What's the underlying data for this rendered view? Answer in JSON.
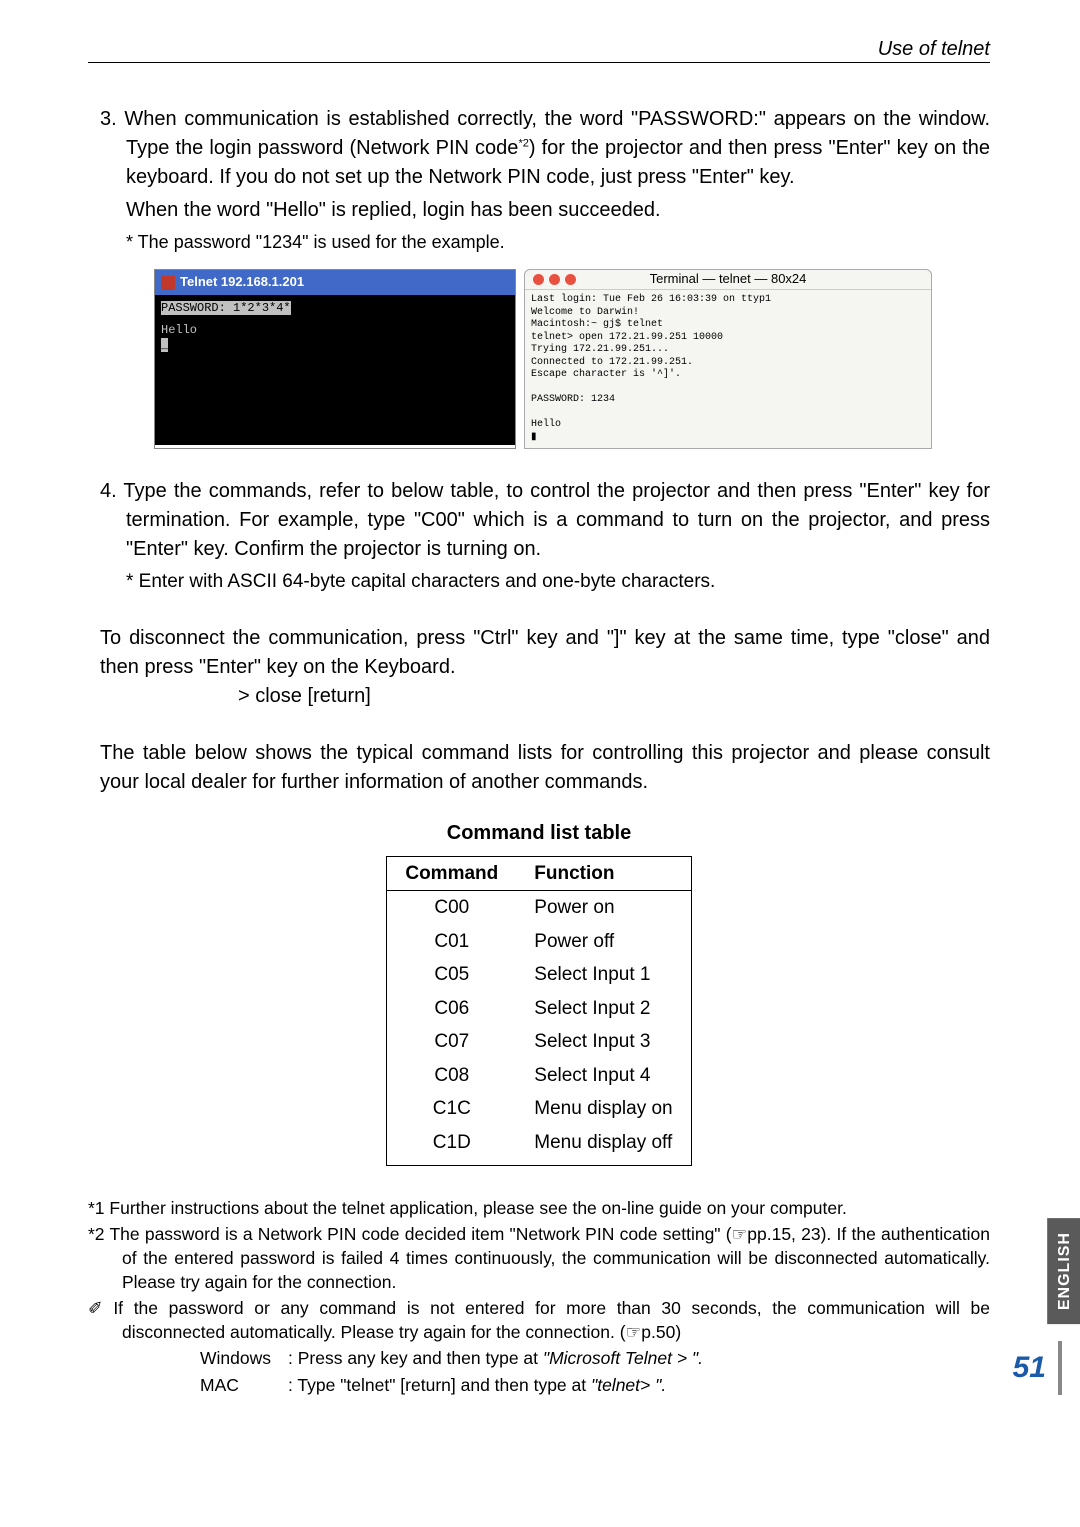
{
  "header": {
    "section_label": "Use of telnet"
  },
  "step3": {
    "num": "3.",
    "text_a": "When communication is established correctly, the word \"PASSWORD:\" appears on the window. Type the login password (Network PIN code",
    "sup": "*2",
    "text_b": ") for the projector and then press \"Enter\" key on the keyboard. If you do not set up the Network PIN code, just press \"Enter\" key.",
    "text_c": "When the word \"Hello\" is replied, login has been succeeded.",
    "note": "* The password \"1234\" is used for the example."
  },
  "win_term": {
    "title": "Telnet 192.168.1.201",
    "line1": "PASSWORD: 1*2*3*4*",
    "line2": "Hello",
    "cursor": "_"
  },
  "mac_term": {
    "title": "Terminal — telnet — 80x24",
    "body": "Last login: Tue Feb 26 16:03:39 on ttyp1\nWelcome to Darwin!\nMacintosh:~ gj$ telnet\ntelnet> open 172.21.99.251 10000\nTrying 172.21.99.251...\nConnected to 172.21.99.251.\nEscape character is '^]'.\n\nPASSWORD: 1234\n\nHello\n▮",
    "dot_colors": [
      "#e8513f",
      "#e8513f",
      "#e8513f"
    ]
  },
  "step4": {
    "num": "4.",
    "text": "Type the commands, refer to below table, to control the projector and then press \"Enter\" key for termination. For example, type \"C00\" which is a command to turn on the projector, and press \"Enter\" key. Confirm the projector is turning on.",
    "star_note": "* Enter with ASCII 64-byte capital characters and one-byte characters."
  },
  "disconnect": {
    "p1": "To disconnect the communication, press \"Ctrl\" key and \"]\" key at the same time, type \"close\" and then press \"Enter\" key on the Keyboard.",
    "close": "> close [return]"
  },
  "table_intro": "The table below shows the typical command lists for controlling this projector and please consult your local dealer for further information of another commands.",
  "table": {
    "title": "Command list table",
    "headers": [
      "Command",
      "Function"
    ],
    "rows": [
      [
        "C00",
        "Power on"
      ],
      [
        "C01",
        "Power off"
      ],
      [
        "C05",
        "Select Input 1"
      ],
      [
        "C06",
        "Select Input 2"
      ],
      [
        "C07",
        "Select Input 3"
      ],
      [
        "C08",
        "Select Input 4"
      ],
      [
        "C1C",
        "Menu display on"
      ],
      [
        "C1D",
        "Menu display off"
      ]
    ]
  },
  "footnotes": {
    "f1": "*1 Further instructions about the telnet application, please see the on-line guide on your computer.",
    "f2": "*2 The password is a Network PIN code decided item \"Network PIN code setting\" (☞pp.15, 23). If the authentication of the entered password is failed 4 times continuously, the communication will be disconnected automatically. Please try again for the connection.",
    "f3_a": "✐ If the password or any command is not entered for more than 30 seconds, the communication will be disconnected automatically. Please try again for the connection. (☞p.50)",
    "win_label": "Windows",
    "win_text_a": ": Press any key and then type at ",
    "win_text_b": "\"Microsoft Telnet >   \".",
    "mac_label": "MAC",
    "mac_text_a": ": Type \"telnet\" [return] and then type at ",
    "mac_text_b": "\"telnet>   \"."
  },
  "side_tab": "ENGLISH",
  "page_number": "51"
}
